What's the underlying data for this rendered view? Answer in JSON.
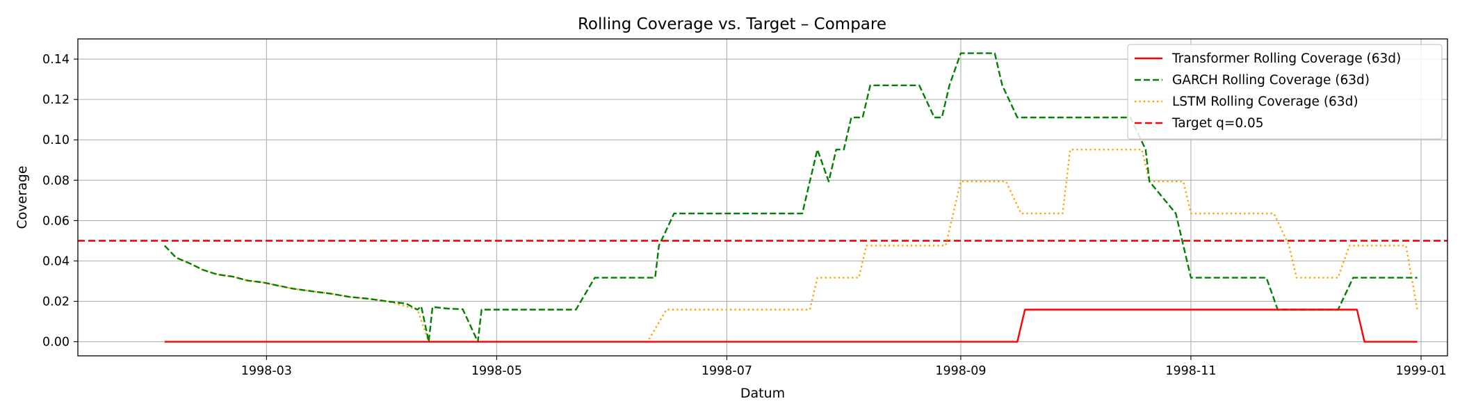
{
  "chart_data": {
    "type": "line",
    "title": "Rolling Coverage vs. Target – Compare",
    "xlabel": "Datum",
    "ylabel": "Coverage",
    "xlim": [
      "1998-01-10",
      "1999-01-08"
    ],
    "ylim": [
      -0.007,
      0.15
    ],
    "x_ticks": [
      "1998-03-01",
      "1998-05-01",
      "1998-07-01",
      "1998-09-01",
      "1998-11-01",
      "1999-01-01"
    ],
    "x_tick_labels": [
      "1998-03",
      "1998-05",
      "1998-07",
      "1998-09",
      "1998-11",
      "1999-01"
    ],
    "y_ticks": [
      0.0,
      0.02,
      0.04,
      0.06,
      0.08,
      0.1,
      0.12,
      0.14
    ],
    "y_tick_labels": [
      "0.00",
      "0.02",
      "0.04",
      "0.06",
      "0.08",
      "0.10",
      "0.12",
      "0.14"
    ],
    "grid": true,
    "legend_position": "top-right",
    "series": [
      {
        "name": "Transformer Rolling Coverage (63d)",
        "color": "#ff0000",
        "style": "solid",
        "points": [
          [
            "1998-02-02",
            0.0
          ],
          [
            "1998-09-16",
            0.0
          ],
          [
            "1998-09-18",
            0.0159
          ],
          [
            "1998-12-15",
            0.0159
          ],
          [
            "1998-12-17",
            0.0
          ],
          [
            "1998-12-31",
            0.0
          ]
        ]
      },
      {
        "name": "GARCH Rolling Coverage (63d)",
        "color": "#008000",
        "style": "dashed",
        "points": [
          [
            "1998-02-02",
            0.0476
          ],
          [
            "1998-02-05",
            0.0417
          ],
          [
            "1998-02-09",
            0.0385
          ],
          [
            "1998-02-12",
            0.0357
          ],
          [
            "1998-02-16",
            0.0333
          ],
          [
            "1998-02-20",
            0.0323
          ],
          [
            "1998-02-24",
            0.0303
          ],
          [
            "1998-02-28",
            0.0294
          ],
          [
            "1998-03-04",
            0.0278
          ],
          [
            "1998-03-08",
            0.0263
          ],
          [
            "1998-03-13",
            0.025
          ],
          [
            "1998-03-18",
            0.0238
          ],
          [
            "1998-03-23",
            0.0222
          ],
          [
            "1998-03-28",
            0.0213
          ],
          [
            "1998-04-02",
            0.02
          ],
          [
            "1998-04-07",
            0.0189
          ],
          [
            "1998-04-11",
            0.0175
          ],
          [
            "1998-04-14",
            0.0172
          ],
          [
            "1998-04-18",
            0.0164
          ],
          [
            "1998-04-22",
            0.0161
          ],
          [
            "1998-04-27",
            0.0159
          ],
          [
            "1998-04-29",
            0.0159
          ],
          [
            "1998-05-01",
            0.0159
          ],
          [
            "1998-04-10",
            0.0159
          ],
          [
            "1998-04-13",
            0.0
          ],
          [
            "1998-04-26",
            0.0
          ],
          [
            "1998-04-30",
            0.0159
          ],
          [
            "1998-05-22",
            0.0159
          ],
          [
            "1998-05-27",
            0.0317
          ],
          [
            "1998-06-12",
            0.0317
          ],
          [
            "1998-06-13",
            0.0476
          ],
          [
            "1998-06-17",
            0.0635
          ],
          [
            "1998-07-21",
            0.0635
          ],
          [
            "1998-07-23",
            0.0794
          ],
          [
            "1998-07-25",
            0.0952
          ],
          [
            "1998-07-28",
            0.0794
          ],
          [
            "1998-07-30",
            0.0952
          ],
          [
            "1998-08-01",
            0.0952
          ],
          [
            "1998-08-03",
            0.1111
          ],
          [
            "1998-08-06",
            0.1111
          ],
          [
            "1998-08-08",
            0.127
          ],
          [
            "1998-08-21",
            0.127
          ],
          [
            "1998-08-25",
            0.1111
          ],
          [
            "1998-08-27",
            0.1111
          ],
          [
            "1998-08-29",
            0.127
          ],
          [
            "1998-09-01",
            0.1429
          ],
          [
            "1998-09-10",
            0.1429
          ],
          [
            "1998-09-12",
            0.127
          ],
          [
            "1998-09-16",
            0.1111
          ],
          [
            "1998-10-16",
            0.1111
          ],
          [
            "1998-10-20",
            0.0952
          ],
          [
            "1998-10-21",
            0.0794
          ],
          [
            "1998-10-28",
            0.0635
          ],
          [
            "1998-10-30",
            0.0476
          ],
          [
            "1998-11-01",
            0.0317
          ],
          [
            "1998-11-21",
            0.0317
          ],
          [
            "1998-11-24",
            0.0159
          ],
          [
            "1998-12-10",
            0.0159
          ],
          [
            "1998-12-14",
            0.0317
          ],
          [
            "1998-12-31",
            0.0317
          ]
        ]
      },
      {
        "name": "LSTM Rolling Coverage (63d)",
        "color": "#ffa500",
        "style": "dotted",
        "points": [
          [
            "1998-02-02",
            0.0476
          ],
          [
            "1998-02-05",
            0.0417
          ],
          [
            "1998-02-09",
            0.0385
          ],
          [
            "1998-02-12",
            0.0357
          ],
          [
            "1998-02-16",
            0.0333
          ],
          [
            "1998-02-20",
            0.0323
          ],
          [
            "1998-02-24",
            0.0303
          ],
          [
            "1998-02-28",
            0.0294
          ],
          [
            "1998-03-04",
            0.0278
          ],
          [
            "1998-03-08",
            0.0263
          ],
          [
            "1998-03-13",
            0.025
          ],
          [
            "1998-03-18",
            0.0238
          ],
          [
            "1998-03-23",
            0.0222
          ],
          [
            "1998-03-28",
            0.0213
          ],
          [
            "1998-04-02",
            0.02
          ],
          [
            "1998-04-07",
            0.0175
          ],
          [
            "1998-04-10",
            0.0159
          ],
          [
            "1998-04-13",
            0.0
          ],
          [
            "1998-06-10",
            0.0
          ],
          [
            "1998-06-15",
            0.0159
          ],
          [
            "1998-07-23",
            0.0159
          ],
          [
            "1998-07-25",
            0.0317
          ],
          [
            "1998-08-05",
            0.0317
          ],
          [
            "1998-08-07",
            0.0476
          ],
          [
            "1998-08-28",
            0.0476
          ],
          [
            "1998-08-30",
            0.0635
          ],
          [
            "1998-09-01",
            0.0794
          ],
          [
            "1998-09-13",
            0.0794
          ],
          [
            "1998-09-17",
            0.0635
          ],
          [
            "1998-09-28",
            0.0635
          ],
          [
            "1998-09-30",
            0.0952
          ],
          [
            "1998-10-19",
            0.0952
          ],
          [
            "1998-10-21",
            0.0794
          ],
          [
            "1998-10-30",
            0.0794
          ],
          [
            "1998-11-01",
            0.0635
          ],
          [
            "1998-11-23",
            0.0635
          ],
          [
            "1998-11-27",
            0.0476
          ],
          [
            "1998-11-29",
            0.0317
          ],
          [
            "1998-12-10",
            0.0317
          ],
          [
            "1998-12-13",
            0.0476
          ],
          [
            "1998-12-28",
            0.0476
          ],
          [
            "1998-12-31",
            0.0159
          ]
        ]
      },
      {
        "name": "Target q=0.05",
        "color": "#ff0000",
        "style": "dashed-thick",
        "hline": 0.05
      }
    ]
  }
}
